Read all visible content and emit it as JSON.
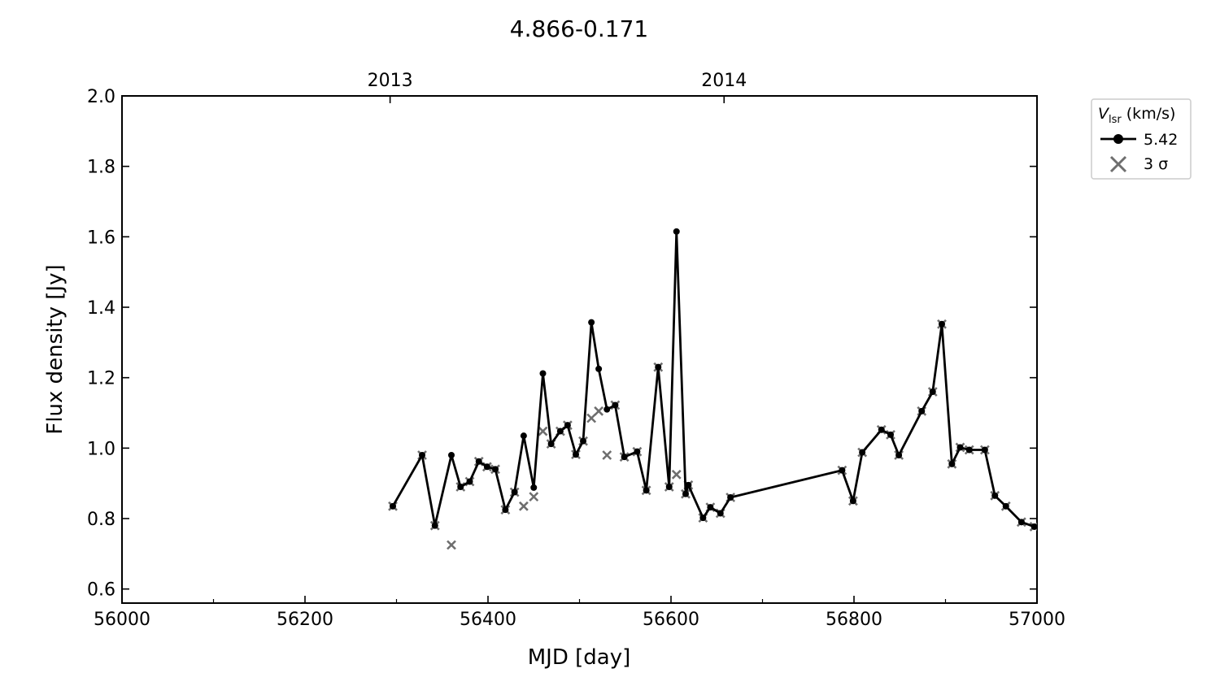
{
  "chart_data": {
    "type": "line",
    "title": "4.866-0.171",
    "xlabel": "MJD [day]",
    "ylabel": "Flux density [Jy]",
    "xlim": [
      56000,
      57000
    ],
    "ylim": [
      0.56,
      2.0
    ],
    "x_ticks": [
      56000,
      56200,
      56400,
      56600,
      56800,
      57000
    ],
    "x_minor_ticks": [
      56100,
      56300,
      56500,
      56700,
      56900
    ],
    "y_ticks": [
      0.6,
      0.8,
      1.0,
      1.2,
      1.4,
      1.6,
      1.8,
      2.0
    ],
    "x_tick_labels": [
      "56000",
      "56200",
      "56400",
      "56600",
      "56800",
      "57000"
    ],
    "y_tick_labels": [
      "0.6",
      "0.8",
      "1.0",
      "1.2",
      "1.4",
      "1.6",
      "1.8",
      "2.0"
    ],
    "top_axis": {
      "ticks": [
        56293,
        56658
      ],
      "labels": [
        "2013",
        "2014"
      ]
    },
    "grid": false,
    "legend": {
      "placement": "outside-right",
      "title_main": "V",
      "title_sub": "lsr",
      "title_unit": " (km/s)",
      "entries": [
        "5.42",
        "3 σ"
      ]
    },
    "series": [
      {
        "name": "5.42",
        "marker": "circle",
        "color": "#000000",
        "x": [
          56296,
          56328,
          56342,
          56360,
          56370,
          56380,
          56390,
          56399,
          56408,
          56419,
          56429,
          56439,
          56450,
          56460,
          56469,
          56479,
          56487,
          56496,
          56504,
          56513,
          56521,
          56530,
          56539,
          56549,
          56563,
          56573,
          56586,
          56598,
          56606,
          56616,
          56619,
          56635,
          56643,
          56654,
          56665,
          56787,
          56799,
          56809,
          56830,
          56840,
          56849,
          56874,
          56886,
          56896,
          56907,
          56916,
          56926,
          56943,
          56954,
          56966,
          56983,
          56997
        ],
        "y": [
          0.835,
          0.98,
          0.78,
          0.98,
          0.89,
          0.905,
          0.962,
          0.947,
          0.94,
          0.825,
          0.875,
          1.035,
          0.888,
          1.212,
          1.012,
          1.048,
          1.065,
          0.982,
          1.02,
          1.357,
          1.225,
          1.11,
          1.122,
          0.975,
          0.99,
          0.88,
          1.23,
          0.89,
          1.615,
          0.87,
          0.895,
          0.802,
          0.832,
          0.815,
          0.86,
          0.937,
          0.85,
          0.988,
          1.052,
          1.038,
          0.98,
          1.105,
          1.16,
          1.352,
          0.955,
          1.002,
          0.995,
          0.995,
          0.865,
          0.835,
          0.79,
          0.777
        ]
      },
      {
        "name": "3 σ",
        "marker": "x",
        "color": "#6e6e6e",
        "x": [
          56296,
          56328,
          56342,
          56360,
          56370,
          56380,
          56390,
          56399,
          56408,
          56419,
          56429,
          56439,
          56450,
          56460,
          56469,
          56479,
          56487,
          56496,
          56504,
          56513,
          56521,
          56530,
          56539,
          56549,
          56563,
          56573,
          56586,
          56598,
          56606,
          56616,
          56619,
          56635,
          56643,
          56654,
          56665,
          56787,
          56799,
          56809,
          56830,
          56840,
          56849,
          56874,
          56886,
          56896,
          56907,
          56916,
          56926,
          56943,
          56954,
          56966,
          56983,
          56997
        ],
        "y": [
          0.835,
          0.98,
          0.78,
          0.725,
          0.89,
          0.905,
          0.962,
          0.947,
          0.94,
          0.825,
          0.875,
          0.835,
          0.862,
          1.048,
          1.012,
          1.048,
          1.065,
          0.982,
          1.02,
          1.085,
          1.105,
          0.98,
          1.122,
          0.975,
          0.99,
          0.88,
          1.23,
          0.89,
          0.925,
          0.87,
          0.895,
          0.802,
          0.832,
          0.815,
          0.86,
          0.937,
          0.85,
          0.988,
          1.052,
          1.038,
          0.98,
          1.105,
          1.16,
          1.352,
          0.955,
          1.002,
          0.995,
          0.995,
          0.865,
          0.835,
          0.79,
          0.777
        ]
      }
    ]
  }
}
